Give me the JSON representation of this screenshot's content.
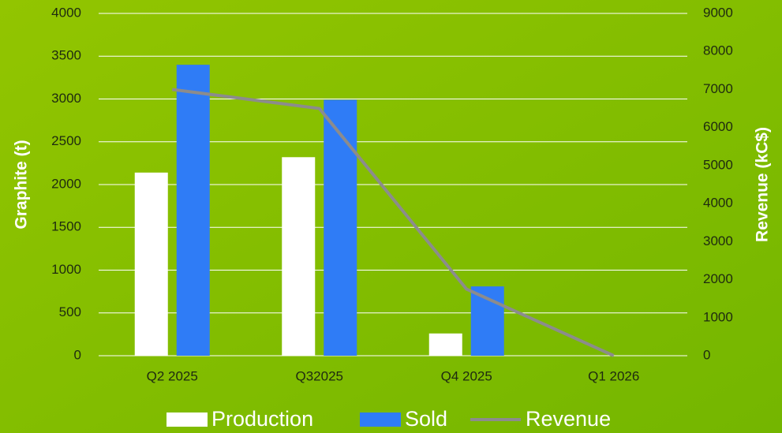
{
  "chart_data": {
    "type": "bar",
    "categories": [
      "Q2 2025",
      "Q32025",
      "Q4 2025",
      "Q1 2026"
    ],
    "series": [
      {
        "name": "Production",
        "type": "bar",
        "color": "#ffffff",
        "values": [
          2140,
          2320,
          260,
          0
        ]
      },
      {
        "name": "Sold",
        "type": "bar",
        "color": "#2f7cf6",
        "values": [
          3400,
          2990,
          810,
          0
        ]
      },
      {
        "name": "Revenue",
        "type": "line",
        "axis": "y2",
        "color": "#8c8c8c",
        "values": [
          7000,
          6500,
          1750,
          0
        ]
      }
    ],
    "ylabel": "Graphite (t)",
    "y2label": "Revenue (kC$)",
    "ylim": [
      0,
      4000
    ],
    "yticks": [
      0,
      500,
      1000,
      1500,
      2000,
      2500,
      3000,
      3500,
      4000
    ],
    "y2lim": [
      0,
      9000
    ],
    "y2ticks": [
      0,
      1000,
      2000,
      3000,
      4000,
      5000,
      6000,
      7000,
      8000,
      9000
    ],
    "grid": true,
    "legend": "bottom"
  }
}
